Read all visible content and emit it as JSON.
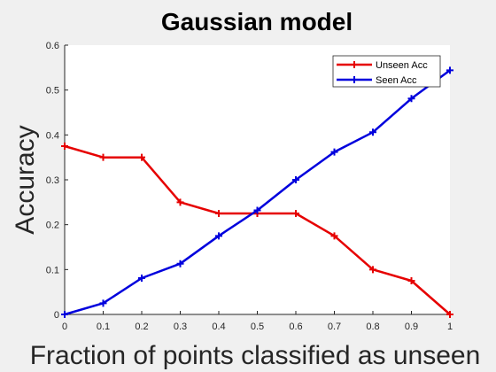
{
  "chart_data": {
    "type": "line",
    "title": "Gaussian model",
    "xlabel": "Fraction of points classified as unseen",
    "ylabel": "Accuracy",
    "xlim": [
      0,
      1
    ],
    "ylim": [
      0,
      0.6
    ],
    "xticks": [
      "0",
      "0.1",
      "0.2",
      "0.3",
      "0.4",
      "0.5",
      "0.6",
      "0.7",
      "0.8",
      "0.9",
      "1"
    ],
    "yticks": [
      "0",
      "0.1",
      "0.2",
      "0.3",
      "0.4",
      "0.5",
      "0.6"
    ],
    "x": [
      0,
      0.1,
      0.2,
      0.3,
      0.4,
      0.5,
      0.6,
      0.7,
      0.8,
      0.9,
      1.0
    ],
    "series": [
      {
        "name": "Unseen Acc",
        "color": "#e60000",
        "values": [
          0.375,
          0.35,
          0.35,
          0.25,
          0.225,
          0.225,
          0.225,
          0.175,
          0.1,
          0.075,
          0.0
        ]
      },
      {
        "name": "Seen Acc",
        "color": "#0000dd",
        "values": [
          0.0,
          0.025,
          0.081,
          0.113,
          0.175,
          0.232,
          0.3,
          0.362,
          0.406,
          0.481,
          0.544
        ]
      }
    ],
    "grid": false,
    "legend_position": "top-right",
    "marker": "plus"
  }
}
